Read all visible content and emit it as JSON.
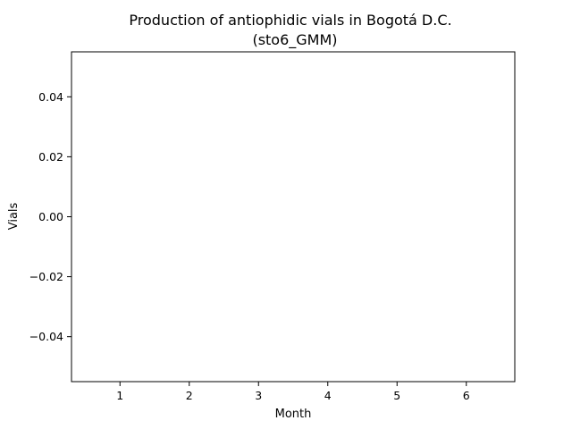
{
  "chart_data": {
    "type": "line",
    "title": "Production of antiophidic vials in Bogotá D.C.",
    "subtitle": "(sto6_GMM)",
    "xlabel": "Month",
    "ylabel": "Vials",
    "x_ticks": [
      "1",
      "2",
      "3",
      "4",
      "5",
      "6"
    ],
    "y_ticks": [
      "0.04",
      "0.02",
      "0.00",
      "−0.02",
      "−0.04"
    ],
    "xlim": [
      0.3,
      6.7
    ],
    "ylim": [
      -0.055,
      0.055
    ],
    "series": [],
    "grid": false,
    "legend": "none"
  }
}
